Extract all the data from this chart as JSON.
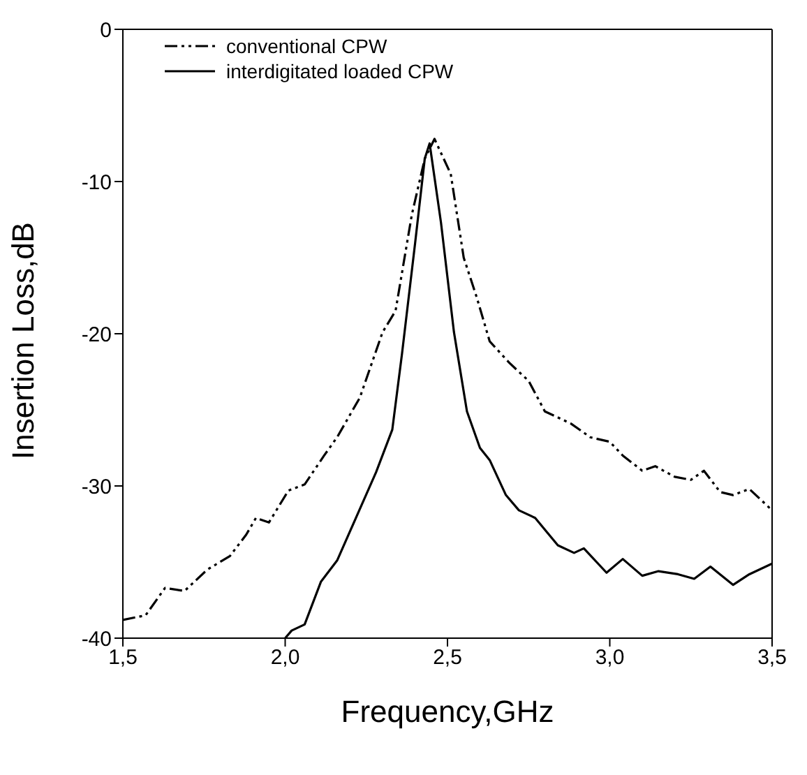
{
  "chart_data": {
    "type": "line",
    "xlabel": "Frequency,GHz",
    "ylabel": "Insertion Loss,dB",
    "xlim": [
      1.5,
      3.5
    ],
    "ylim": [
      -40,
      0
    ],
    "xticks": [
      {
        "value": 1.5,
        "label": "1,5"
      },
      {
        "value": 2.0,
        "label": "2,0"
      },
      {
        "value": 2.5,
        "label": "2,5"
      },
      {
        "value": 3.0,
        "label": "3,0"
      },
      {
        "value": 3.5,
        "label": "3,5"
      }
    ],
    "yticks": [
      -40,
      -30,
      -20,
      -10,
      0
    ],
    "legend": "top left",
    "marker": "none",
    "series": [
      {
        "name": "conventional CPW",
        "color": "#000000",
        "line_style": "dashed",
        "x": [
          1.5,
          1.57,
          1.63,
          1.69,
          1.76,
          1.83,
          1.88,
          1.91,
          1.95,
          2.01,
          2.06,
          2.12,
          2.16,
          2.23,
          2.3,
          2.34,
          2.39,
          2.43,
          2.46,
          2.51,
          2.55,
          2.59,
          2.63,
          2.69,
          2.75,
          2.8,
          2.88,
          2.94,
          3.0,
          3.04,
          3.1,
          3.14,
          3.2,
          3.25,
          3.29,
          3.34,
          3.38,
          3.43,
          3.5
        ],
        "values": [
          -38.8,
          -38.5,
          -36.7,
          -36.9,
          -35.5,
          -34.6,
          -33.2,
          -32.1,
          -32.4,
          -30.3,
          -29.9,
          -28.0,
          -26.8,
          -24.2,
          -19.9,
          -18.5,
          -12.2,
          -8.5,
          -7.2,
          -9.5,
          -15.0,
          -17.6,
          -20.5,
          -21.9,
          -23.1,
          -25.1,
          -25.9,
          -26.8,
          -27.1,
          -28.0,
          -29.0,
          -28.7,
          -29.4,
          -29.6,
          -29.0,
          -30.4,
          -30.6,
          -30.2,
          -31.6
        ]
      },
      {
        "name": "interdigitated loaded CPW",
        "color": "#000000",
        "line_style": "solid",
        "x": [
          2.0,
          2.02,
          2.06,
          2.11,
          2.16,
          2.22,
          2.28,
          2.33,
          2.36,
          2.4,
          2.43,
          2.445,
          2.48,
          2.52,
          2.56,
          2.6,
          2.63,
          2.68,
          2.72,
          2.77,
          2.84,
          2.89,
          2.92,
          2.99,
          3.04,
          3.1,
          3.15,
          3.21,
          3.26,
          3.31,
          3.38,
          3.43,
          3.5
        ],
        "values": [
          -40,
          -39.5,
          -39.1,
          -36.3,
          -34.9,
          -32.0,
          -29.1,
          -26.3,
          -21.3,
          -14.1,
          -8.5,
          -7.5,
          -12.7,
          -19.9,
          -25.1,
          -27.5,
          -28.3,
          -30.6,
          -31.6,
          -32.1,
          -33.9,
          -34.4,
          -34.1,
          -35.7,
          -34.8,
          -35.9,
          -35.6,
          -35.8,
          -36.1,
          -35.3,
          -36.5,
          -35.8,
          -35.1
        ]
      }
    ]
  }
}
